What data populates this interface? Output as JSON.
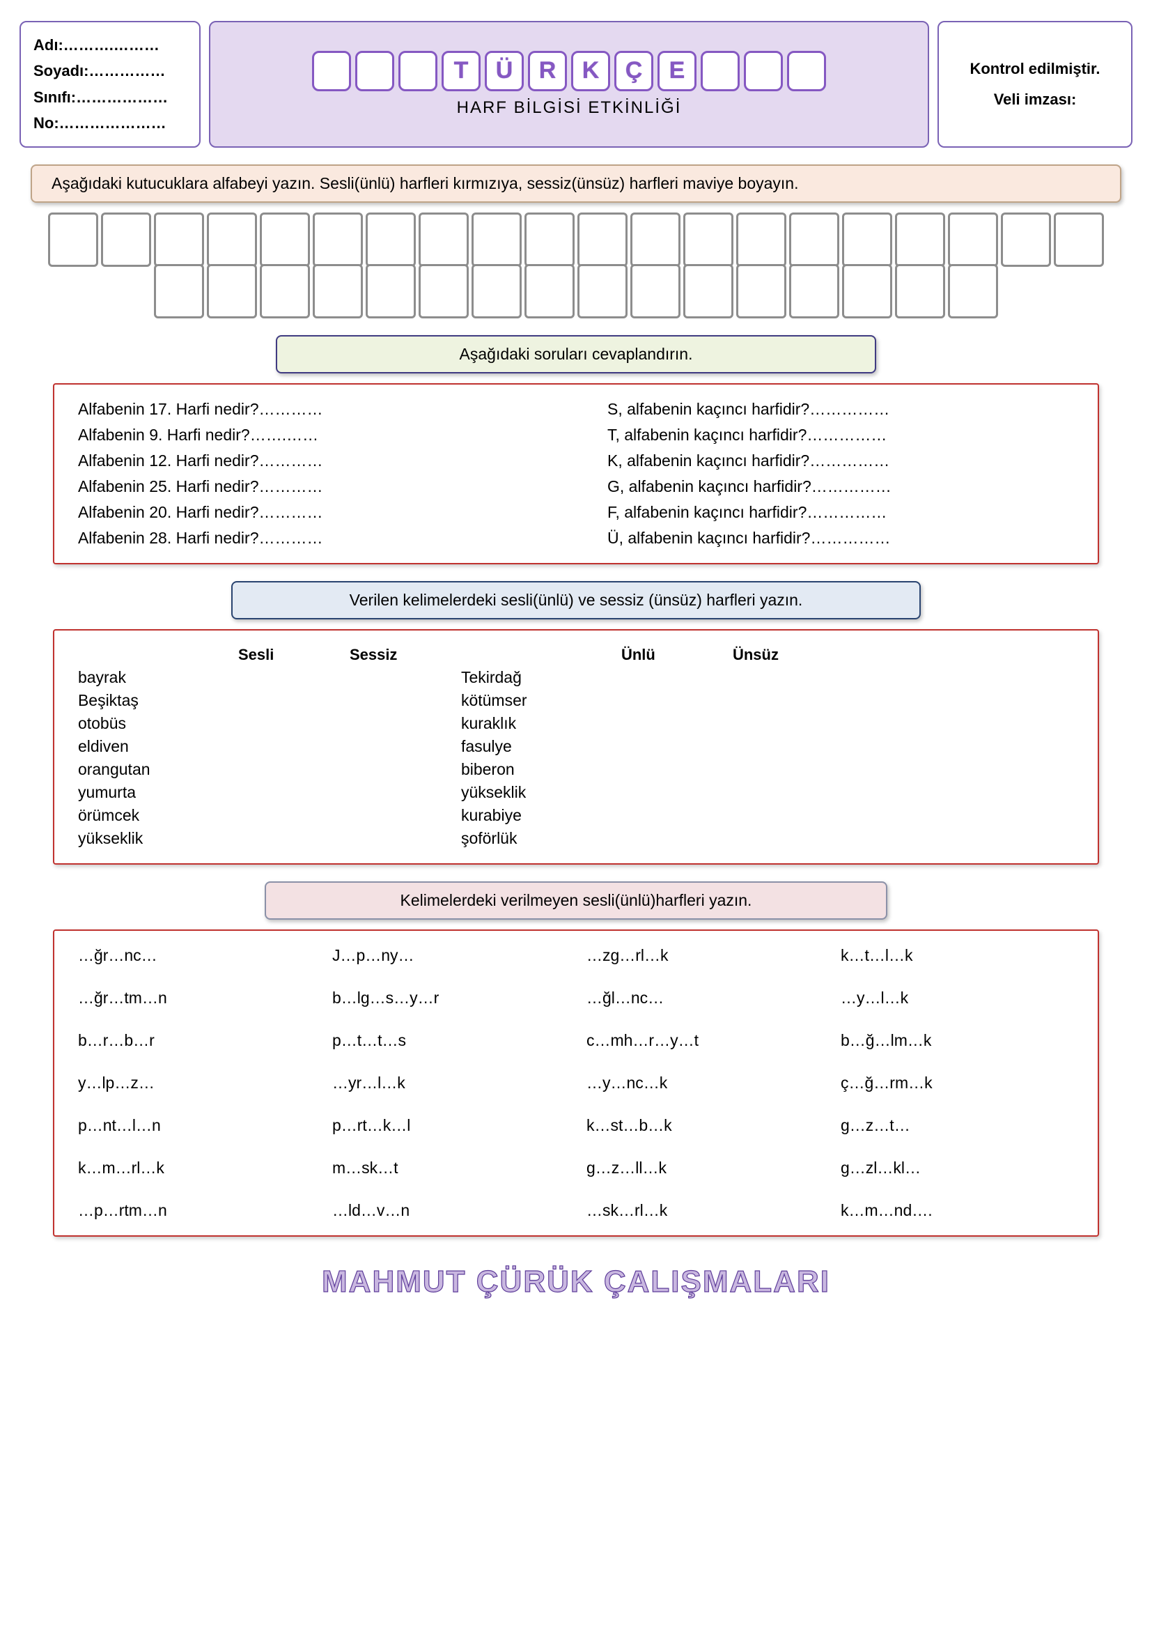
{
  "header": {
    "fields": {
      "name_label": "Adı:……….………",
      "surname_label": "Soyadı:……………",
      "class_label": "Sınıfı:………………",
      "no_label": "No:…………………"
    },
    "title_letters": [
      "",
      "",
      "",
      "T",
      "Ü",
      "R",
      "K",
      "Ç",
      "E",
      "",
      "",
      ""
    ],
    "subtitle": "HARF BİLGİSİ ETKİNLİĞİ",
    "check_text": "Kontrol edilmiştir.",
    "sign_text": "Veli imzası:"
  },
  "colors": {
    "purple_border": "#7a62b5",
    "purple_fill": "#e4d9f0",
    "purple_dark": "#8558c2",
    "red_border": "#c0322f",
    "banner_pink": "#fae9df",
    "banner_green": "#eef3e0",
    "banner_blue": "#e3eaf3",
    "banner_rose": "#f3e1e3"
  },
  "section1": {
    "instruction": "Aşağıdaki kutucuklara alfabeyi yazın. Sesli(ünlü) harfleri kırmızıya, sessiz(ünsüz) harfleri maviye boyayın.",
    "top_row_boxes": 20,
    "bottom_row_boxes": 16
  },
  "section2": {
    "instruction": "Aşağıdaki soruları cevaplandırın.",
    "left_qs": [
      "Alfabenin 17. Harfi nedir?…………",
      "Alfabenin 9. Harfi nedir?…….……",
      "Alfabenin 12. Harfi nedir?…………",
      "Alfabenin 25. Harfi nedir?…………",
      "Alfabenin 20. Harfi nedir?…………",
      "Alfabenin 28. Harfi nedir?…………"
    ],
    "right_qs": [
      "S, alfabenin kaçıncı harfidir?……………",
      "T, alfabenin kaçıncı harfidir?……………",
      "K, alfabenin kaçıncı harfidir?……………",
      "G, alfabenin kaçıncı harfidir?……………",
      "F, alfabenin kaçıncı harfidir?……………",
      "Ü, alfabenin kaçıncı harfidir?……………"
    ]
  },
  "section3": {
    "instruction": "Verilen kelimelerdeki sesli(ünlü) ve sessiz (ünsüz) harfleri yazın.",
    "headers_left": [
      "",
      "Sesli",
      "Sessiz"
    ],
    "headers_right": [
      "",
      "Ünlü",
      "Ünsüz"
    ],
    "left_words": [
      "bayrak",
      "Beşiktaş",
      "otobüs",
      "eldiven",
      "orangutan",
      "yumurta",
      "örümcek",
      "yükseklik"
    ],
    "right_words": [
      "Tekirdağ",
      "kötümser",
      "kuraklık",
      "fasulye",
      "biberon",
      "yükseklik",
      "kurabiye",
      "şoförlük"
    ]
  },
  "section4": {
    "instruction": "Kelimelerdeki verilmeyen sesli(ünlü)harfleri yazın.",
    "cells": [
      "…ğr…nc…",
      "J…p…ny…",
      "…zg…rl…k",
      "k…t…l…k",
      "…ğr…tm…n",
      "b…lg…s…y…r",
      "…ğl…nc…",
      "…y…l…k",
      "b…r…b…r",
      "p…t…t…s",
      "c…mh…r…y…t",
      "b…ğ…lm…k",
      "y…lp…z…",
      "…yr…l…k",
      "…y…nc…k",
      "ç…ğ…rm…k",
      "p…nt…l…n",
      "p…rt…k…l",
      "k…st…b…k",
      "g…z…t…",
      "k…m…rl…k",
      "m…sk…t",
      "g…z…ll…k",
      "g…zl…kl…",
      "…p…rtm…n",
      "…ld…v…n",
      "…sk…rl…k",
      "k…m…nd…."
    ]
  },
  "footer": "MAHMUT ÇÜRÜK ÇALIŞMALARI"
}
